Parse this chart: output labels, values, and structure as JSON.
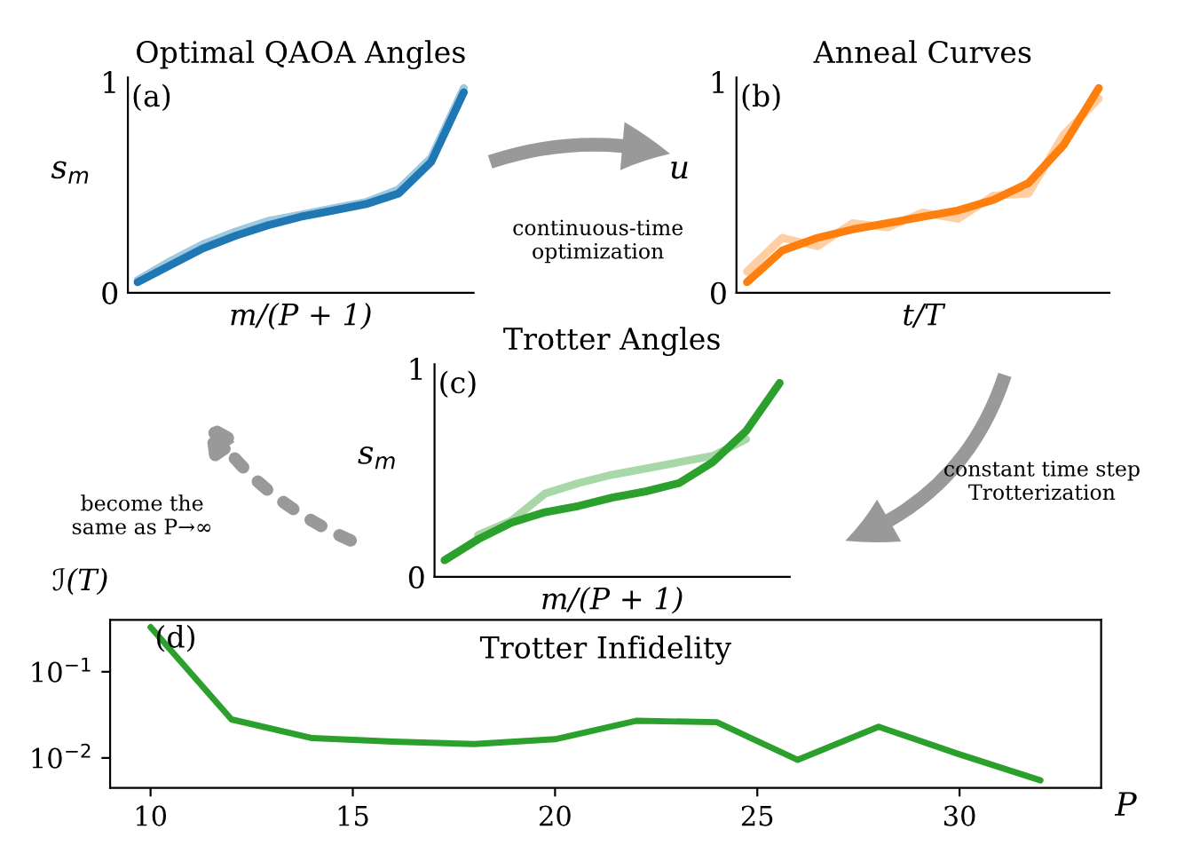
{
  "chart_data": [
    {
      "type": "line",
      "title": "Optimal QAOA Angles",
      "xlabel": "m/(P + 1)",
      "ylabel": "s$_{m}$",
      "categories": [
        null,
        null,
        null,
        null,
        null,
        null,
        null,
        null,
        null,
        null,
        null
      ],
      "ylim": [
        0,
        1.02
      ],
      "yticks": [
        0,
        1
      ],
      "tick_labels": "y",
      "grid": false,
      "series": [
        {
          "color": "#9ecae1",
          "values": [
            0.06,
            0.15,
            0.23,
            0.29,
            0.34,
            0.37,
            0.4,
            0.43,
            0.49,
            0.64,
            0.97
          ]
        },
        {
          "color": "#1f77b4",
          "values": [
            0.05,
            0.13,
            0.21,
            0.27,
            0.32,
            0.36,
            0.39,
            0.42,
            0.47,
            0.62,
            0.95
          ]
        }
      ],
      "annotations": [
        "(a)",
        "continuous-time\noptimization"
      ]
    },
    {
      "type": "line",
      "title": "Anneal Curves",
      "xlabel": "t/T",
      "ylabel": "u",
      "categories": [
        null,
        null,
        null,
        null,
        null,
        null,
        null,
        null,
        null,
        null,
        null
      ],
      "ylim": [
        0,
        1.02
      ],
      "yticks": [
        0,
        1
      ],
      "tick_labels": "y",
      "grid": false,
      "series": [
        {
          "color": "#ffcfa3",
          "values": [
            0.1,
            0.26,
            0.22,
            0.33,
            0.31,
            0.38,
            0.35,
            0.46,
            0.47,
            0.75,
            0.92
          ]
        },
        {
          "color": "#ff7f0e",
          "values": [
            0.05,
            0.2,
            0.26,
            0.3,
            0.33,
            0.36,
            0.39,
            0.44,
            0.52,
            0.7,
            0.97
          ]
        }
      ],
      "annotations": [
        "(b)"
      ]
    },
    {
      "type": "line",
      "title": "Trotter Angles",
      "xlabel": "m/(P + 1)",
      "ylabel": "s$_{m}$",
      "categories": [
        null,
        null,
        null,
        null,
        null,
        null,
        null,
        null,
        null,
        null,
        null
      ],
      "ylim": [
        0,
        1.02
      ],
      "yticks": [
        0,
        1
      ],
      "tick_labels": "y",
      "grid": false,
      "series": [
        {
          "color": "#a8d8a8",
          "values": [
            null,
            0.2,
            0.27,
            0.4,
            0.45,
            0.49,
            0.52,
            0.55,
            0.58,
            0.66,
            null
          ]
        },
        {
          "color": "#2ca02c",
          "values": [
            0.08,
            0.18,
            0.26,
            0.31,
            0.34,
            0.38,
            0.41,
            0.45,
            0.55,
            0.7,
            0.93
          ]
        }
      ],
      "annotations": [
        "(c)",
        "constant time step\nTrotterization",
        "become the\nsame as P→∞"
      ]
    },
    {
      "type": "line",
      "title": "Trotter Infidelity",
      "xlabel": "P",
      "ylabel": "ℐ(T)",
      "log": "y",
      "x": [
        10,
        12,
        14,
        16,
        18,
        20,
        22,
        24,
        26,
        28,
        30,
        32
      ],
      "xlim": [
        9,
        33.5
      ],
      "xticks": [
        10,
        15,
        20,
        25,
        30
      ],
      "ylim": [
        0.0045,
        0.4
      ],
      "yticks": [
        {
          "value": 0.1,
          "label": "10$^{−1}$"
        },
        {
          "value": 0.01,
          "label": "10$^{−2}$"
        }
      ],
      "grid": false,
      "series": [
        {
          "color": "#2ca02c",
          "values": [
            0.33,
            0.028,
            0.017,
            0.0155,
            0.0145,
            0.0165,
            0.027,
            0.026,
            0.0095,
            0.023,
            0.011,
            0.0055
          ]
        }
      ],
      "annotations": [
        "(d)"
      ]
    }
  ]
}
